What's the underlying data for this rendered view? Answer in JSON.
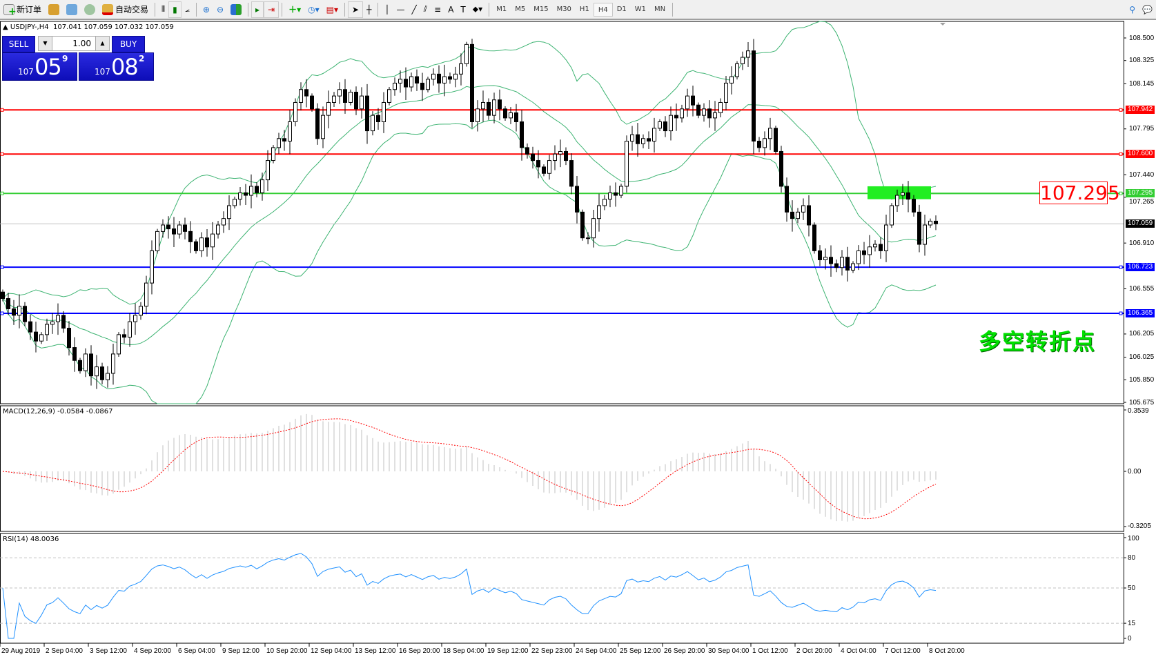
{
  "toolbar": {
    "new_order": "新订单",
    "auto_trading": "自动交易",
    "icons": [
      "new-order-icon",
      "market-watch-icon",
      "navigator-icon",
      "signals-icon",
      "auto-trading-icon",
      "bar-chart-icon",
      "candlestick-icon",
      "line-chart-icon",
      "zoom-in-icon",
      "zoom-out-icon",
      "tile-windows-icon",
      "autoscroll-icon",
      "chart-shift-icon",
      "indicators-icon",
      "periods-icon",
      "templates-icon",
      "cursor-icon",
      "crosshair-icon",
      "vertical-line-icon",
      "horizontal-line-icon",
      "trendline-icon",
      "equidistant-channel-icon",
      "fibonacci-icon",
      "text-icon",
      "text-label-icon",
      "arrows-icon"
    ],
    "timeframes": [
      "M1",
      "M5",
      "M15",
      "M30",
      "H1",
      "H4",
      "D1",
      "W1",
      "MN"
    ],
    "active_timeframe": "H4"
  },
  "header": {
    "symbol": "USDJPY-,H4",
    "ohlc": "107.041 107.059 107.032 107.059"
  },
  "trade_panel": {
    "sell": "SELL",
    "buy": "BUY",
    "lot": "1.00",
    "bid_prefix": "107",
    "bid_big": "05",
    "bid_pip": "9",
    "ask_prefix": "107",
    "ask_big": "08",
    "ask_pip": "2"
  },
  "chart_data": {
    "type": "candlestick",
    "price_ticks": [
      "108.500",
      "108.325",
      "108.145",
      "107.795",
      "107.440",
      "107.265",
      "106.910",
      "106.555",
      "106.205",
      "106.025",
      "105.850",
      "105.675"
    ],
    "price_range": [
      105.675,
      108.5
    ],
    "date_labels": [
      "29 Aug 2019",
      "2 Sep 04:00",
      "3 Sep 12:00",
      "4 Sep 20:00",
      "6 Sep 04:00",
      "9 Sep 12:00",
      "10 Sep 20:00",
      "12 Sep 04:00",
      "13 Sep 12:00",
      "16 Sep 20:00",
      "18 Sep 04:00",
      "19 Sep 12:00",
      "22 Sep 23:00",
      "24 Sep 04:00",
      "25 Sep 12:00",
      "26 Sep 20:00",
      "30 Sep 04:00",
      "1 Oct 12:00",
      "2 Oct 20:00",
      "4 Oct 04:00",
      "7 Oct 12:00",
      "8 Oct 20:00"
    ],
    "closes": [
      106.48,
      106.4,
      106.35,
      106.42,
      106.3,
      106.22,
      106.15,
      106.2,
      106.28,
      106.3,
      106.35,
      106.25,
      106.1,
      106.0,
      105.92,
      106.05,
      105.88,
      105.95,
      105.85,
      105.9,
      106.05,
      106.2,
      106.18,
      106.3,
      106.35,
      106.42,
      106.6,
      106.85,
      107.0,
      107.05,
      107.02,
      106.98,
      107.05,
      107.0,
      106.92,
      106.85,
      106.95,
      106.88,
      106.98,
      107.05,
      107.1,
      107.2,
      107.25,
      107.3,
      107.28,
      107.35,
      107.3,
      107.4,
      107.55,
      107.65,
      107.72,
      107.7,
      107.85,
      108.0,
      108.1,
      108.05,
      107.95,
      107.72,
      107.9,
      108.0,
      108.05,
      108.1,
      108.0,
      108.08,
      107.95,
      108.05,
      107.78,
      107.9,
      107.85,
      108.0,
      108.1,
      108.15,
      108.18,
      108.12,
      108.2,
      108.15,
      108.1,
      108.18,
      108.22,
      108.15,
      108.2,
      108.18,
      108.22,
      108.3,
      108.45,
      107.85,
      107.95,
      108.0,
      107.9,
      108.02,
      107.95,
      107.88,
      107.92,
      107.85,
      107.65,
      107.6,
      107.55,
      107.5,
      107.45,
      107.55,
      107.6,
      107.62,
      107.55,
      107.35,
      107.15,
      106.95,
      106.95,
      107.1,
      107.2,
      107.25,
      107.3,
      107.28,
      107.35,
      107.7,
      107.75,
      107.68,
      107.72,
      107.7,
      107.8,
      107.85,
      107.78,
      107.9,
      107.88,
      107.95,
      108.05,
      107.98,
      107.9,
      107.95,
      107.88,
      107.92,
      108.0,
      108.15,
      108.2,
      108.3,
      108.35,
      108.4,
      107.7,
      107.65,
      107.72,
      107.8,
      107.62,
      107.35,
      107.15,
      107.1,
      107.15,
      107.2,
      107.05,
      106.85,
      106.78,
      106.8,
      106.75,
      106.72,
      106.8,
      106.7,
      106.75,
      106.85,
      106.82,
      106.88,
      106.9,
      106.85,
      107.05,
      107.2,
      107.28,
      107.3,
      107.25,
      107.15,
      106.9,
      107.05,
      107.08,
      107.059
    ],
    "bollinger_color": "#3cb371",
    "horizontal_lines": [
      {
        "price": 107.942,
        "label": "107.942",
        "color": "#ff0000"
      },
      {
        "price": 107.6,
        "label": "107.600",
        "color": "#ff0000"
      },
      {
        "price": 107.295,
        "label": "107.295",
        "color": "#32cd32"
      },
      {
        "price": 106.723,
        "label": "106.723",
        "color": "#0000ff"
      },
      {
        "price": 106.365,
        "label": "106.365",
        "color": "#0000ff"
      }
    ],
    "bid": {
      "price": 107.059,
      "label": "107.059"
    },
    "zone": {
      "from": 107.25,
      "to": 107.35,
      "color": "#22ee22"
    },
    "price_label": "107.295",
    "annotation": "多空转折点",
    "macd": {
      "title": "MACD(12,26,9) -0.0584 -0.0867",
      "ticks": [
        "0.3539",
        "0.00",
        "-0.3205"
      ],
      "range": [
        -0.3205,
        0.3539
      ],
      "hist_color": "#c0c0c0",
      "signal_color": "#ff0000"
    },
    "rsi": {
      "title": "RSI(14) 48.0036",
      "ticks": [
        "100",
        "80",
        "50",
        "15",
        "0"
      ],
      "levels": [
        80,
        50,
        15
      ],
      "color": "#1e90ff"
    }
  }
}
